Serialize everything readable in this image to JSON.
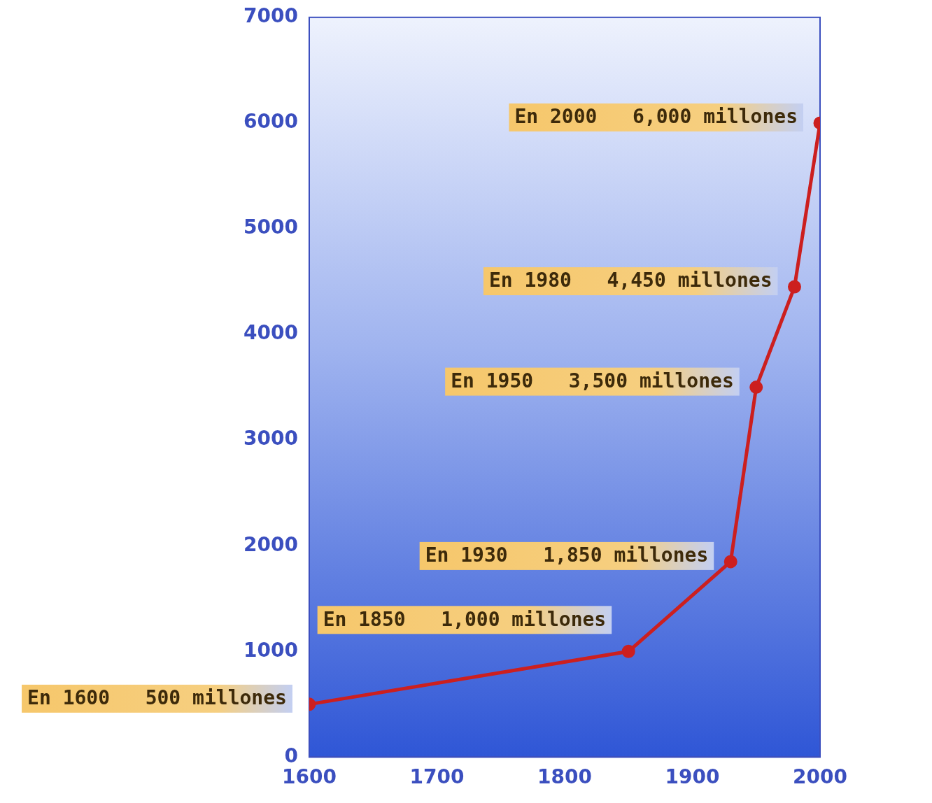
{
  "chart_data": {
    "type": "line",
    "x": [
      1600,
      1850,
      1930,
      1950,
      1980,
      2000
    ],
    "values": [
      500,
      1000,
      1850,
      3500,
      4450,
      6000
    ],
    "value_labels": [
      "En 1600   500 millones",
      "En 1850   1,000 millones",
      "En 1930   1,850 millones",
      "En 1950   3,500 millones",
      "En 1980   4,450 millones",
      "En 2000   6,000 millones"
    ],
    "data_labels": true,
    "color": "#cc1f1f",
    "marker": "circle",
    "line_style": "solid",
    "xlim": [
      1600,
      2000
    ],
    "xticks": [
      1600,
      1700,
      1800,
      1900,
      2000
    ],
    "ylim": [
      0,
      7000
    ],
    "yticks": [
      0,
      1000,
      2000,
      3000,
      4000,
      5000,
      6000,
      7000
    ],
    "grid": false
  }
}
